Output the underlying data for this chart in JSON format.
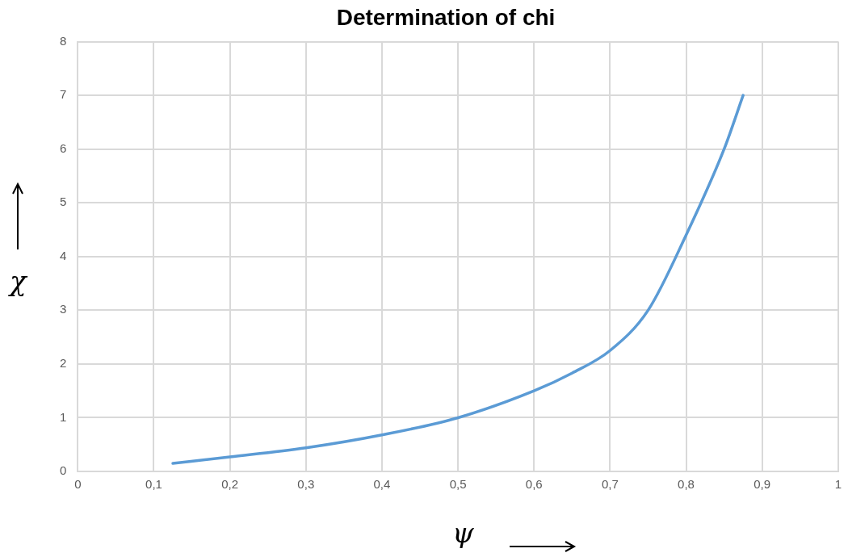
{
  "chart_data": {
    "type": "line",
    "title": "Determination of chi",
    "xlabel": "ψ",
    "ylabel": "χ",
    "x": [
      0.125,
      0.2,
      0.3,
      0.4,
      0.5,
      0.6,
      0.65,
      0.7,
      0.75,
      0.8,
      0.85,
      0.875
    ],
    "series": [
      {
        "color": "#5b9bd5",
        "values": [
          0.15,
          0.27,
          0.44,
          0.68,
          1.0,
          1.5,
          1.83,
          2.25,
          3.0,
          4.4,
          6.0,
          7.0
        ]
      }
    ],
    "xlim": [
      0,
      1
    ],
    "ylim": [
      0,
      8
    ],
    "xticks": [
      0,
      {
        "value": 0.1,
        "label": "0,1"
      },
      {
        "value": 0.2,
        "label": "0,2"
      },
      {
        "value": 0.3,
        "label": "0,3"
      },
      {
        "value": 0.4,
        "label": "0,4"
      },
      {
        "value": 0.5,
        "label": "0,5"
      },
      {
        "value": 0.6,
        "label": "0,6"
      },
      {
        "value": 0.7,
        "label": "0,7"
      },
      {
        "value": 0.8,
        "label": "0,8"
      },
      {
        "value": 0.9,
        "label": "0,9"
      },
      1
    ],
    "yticks": [
      0,
      1,
      2,
      3,
      4,
      5,
      6,
      7,
      8
    ],
    "grid": true,
    "legend": false,
    "marker": "none",
    "line_style": "solid"
  }
}
